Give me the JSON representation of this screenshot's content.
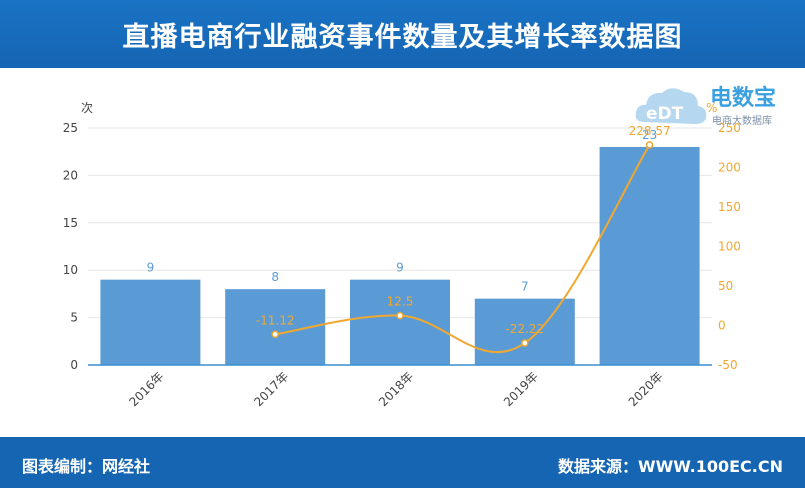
{
  "header": {
    "title": "直播电商行业融资事件数量及其增长率数据图"
  },
  "footer": {
    "left_text": "图表编制：网经社",
    "right_text": "数据来源：WWW.100EC.CN"
  },
  "logo": {
    "brand": "电数宝",
    "sub": "电商大数据库",
    "mark": "eDT"
  },
  "chart_data": {
    "type": "bar",
    "categories": [
      "2016年",
      "2017年",
      "2018年",
      "2019年",
      "2020年"
    ],
    "series": [
      {
        "type": "bar",
        "axis": "left",
        "values": [
          9,
          8,
          9,
          7,
          23
        ],
        "labels": [
          "9",
          "8",
          "9",
          "7",
          "23"
        ],
        "color": "#5b9bd5"
      },
      {
        "type": "line",
        "axis": "right",
        "values": [
          null,
          -11.12,
          12.5,
          -22.22,
          228.57
        ],
        "labels": [
          "",
          "-11.12",
          "12.5",
          "-22.22",
          "228.57"
        ],
        "color": "#f0a830"
      }
    ],
    "left_axis": {
      "unit": "次",
      "ylim": [
        0,
        25
      ],
      "ticks": [
        "0",
        "5",
        "10",
        "15",
        "20",
        "25"
      ]
    },
    "right_axis": {
      "unit": "%",
      "ylim": [
        -50,
        250
      ],
      "ticks": [
        "-50",
        "0",
        "50",
        "100",
        "150",
        "200",
        "250"
      ]
    },
    "grid": true
  }
}
